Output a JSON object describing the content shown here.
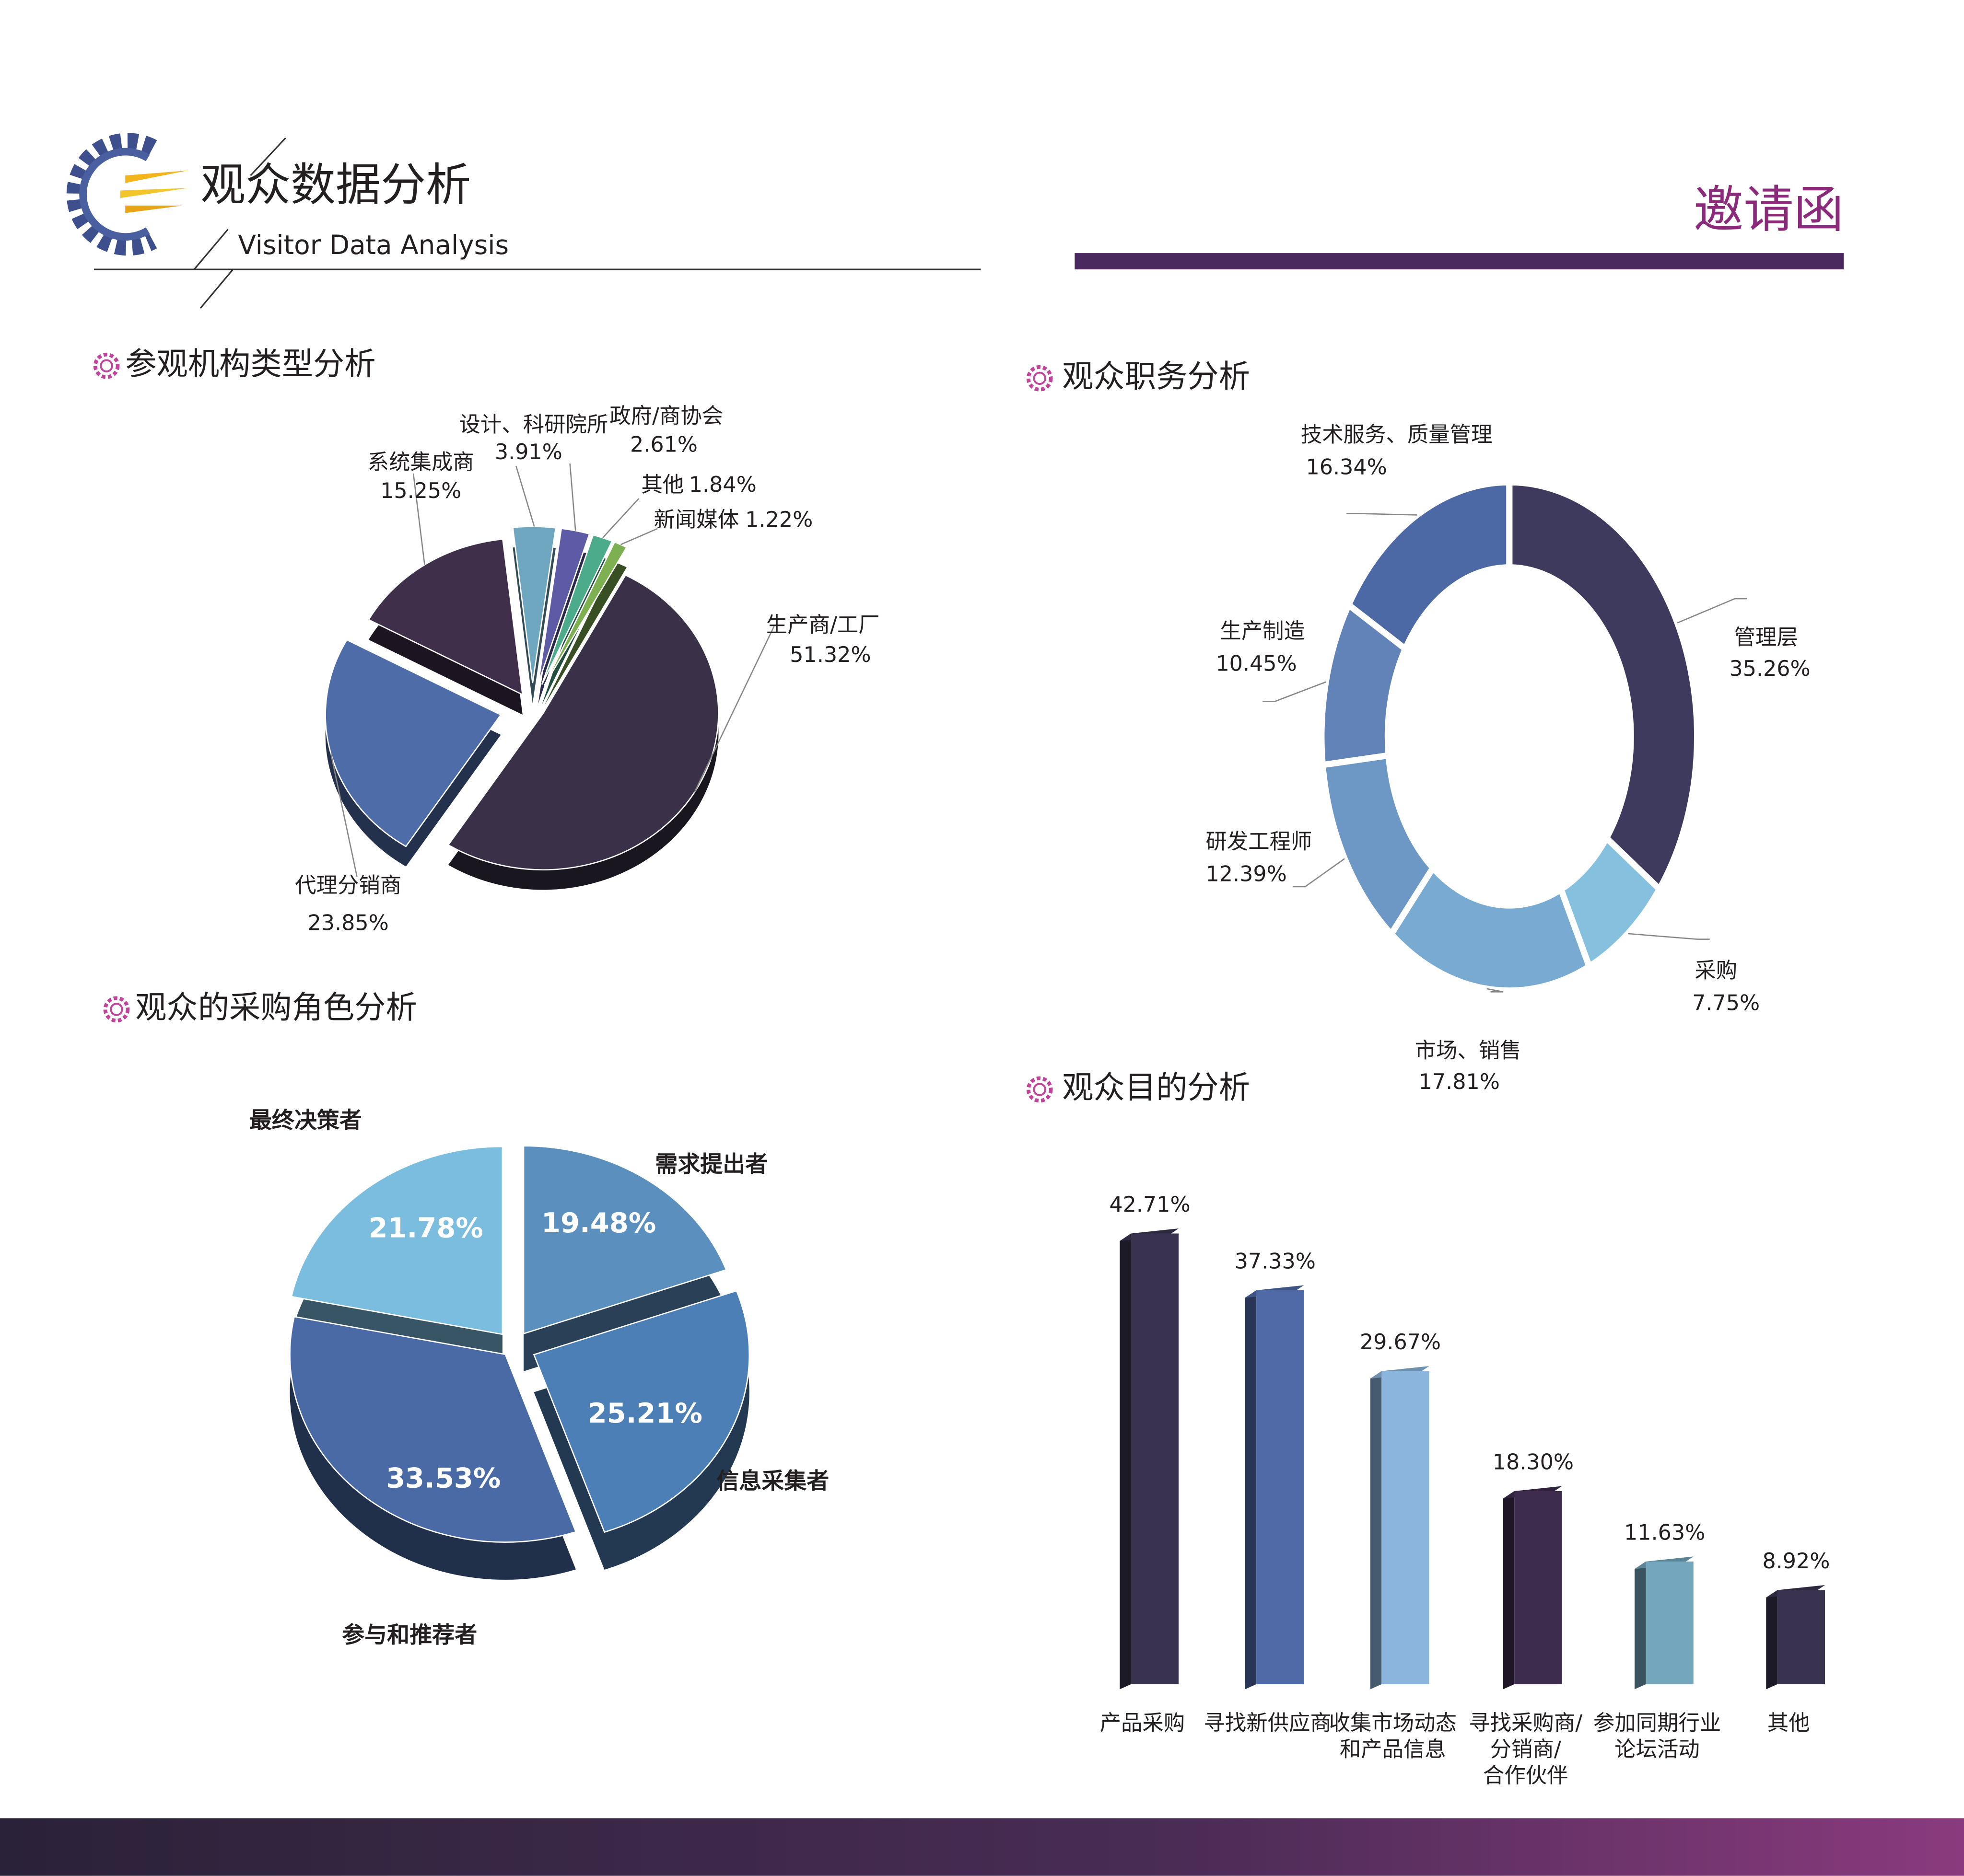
{
  "header": {
    "title": "观众数据分析",
    "subtitle": "Visitor Data Analysis",
    "badge": "邀请函"
  },
  "chart_data": [
    {
      "type": "pie",
      "title": "参观机构类型分析",
      "categories": [
        "生产商/工厂",
        "代理分销商",
        "系统集成商",
        "设计、科研院所",
        "政府/商协会",
        "其他",
        "新闻媒体"
      ],
      "values": [
        51.32,
        23.85,
        15.25,
        3.91,
        2.61,
        1.84,
        1.22
      ],
      "value_labels": [
        "51.32%",
        "23.85%",
        "15.25%",
        "3.91%",
        "2.61%",
        "1.84%",
        "1.22%"
      ],
      "colors": [
        "#3a3048",
        "#4e6ca8",
        "#3f2f4a",
        "#6fa6c0",
        "#5d5ba6",
        "#4bab8a",
        "#7cb050"
      ]
    },
    {
      "type": "donut",
      "title": "观众职务分析",
      "categories": [
        "管理层",
        "采购",
        "市场、销售",
        "研发工程师",
        "生产制造",
        "技术服务、质量管理"
      ],
      "values": [
        35.26,
        7.75,
        17.81,
        12.39,
        10.45,
        16.34
      ],
      "value_labels": [
        "35.26%",
        "7.75%",
        "17.81%",
        "12.39%",
        "10.45%",
        "16.34%"
      ],
      "colors": [
        "#3d3a5e",
        "#85c1de",
        "#78aad2",
        "#6d98c5",
        "#6283b8",
        "#4d69a5"
      ]
    },
    {
      "type": "pie",
      "title": "观众的采购角色分析",
      "categories": [
        "需求提出者",
        "信息采集者",
        "参与和推荐者",
        "最终决策者"
      ],
      "values": [
        19.48,
        25.21,
        33.53,
        21.78
      ],
      "value_labels": [
        "19.48%",
        "25.21%",
        "33.53%",
        "21.78%"
      ],
      "colors": [
        "#5b8fbe",
        "#4c7fb5",
        "#4a6aa5",
        "#7abddf"
      ]
    },
    {
      "type": "bar",
      "title": "观众目的分析",
      "categories": [
        "产品采购",
        "寻找新供应商",
        "收集市场动态\n和产品信息",
        "寻找采购商/\n分销商/\n合作伙伴",
        "参加同期行业\n论坛活动",
        "其他"
      ],
      "values": [
        42.71,
        37.33,
        29.67,
        18.3,
        11.63,
        8.92
      ],
      "value_labels": [
        "42.71%",
        "37.33%",
        "29.67%",
        "18.30%",
        "11.63%",
        "8.92%"
      ],
      "colors": [
        "#3a3350",
        "#4f6aa7",
        "#8bb5dc",
        "#3d2c4e",
        "#74a6be",
        "#3a3350"
      ]
    }
  ]
}
